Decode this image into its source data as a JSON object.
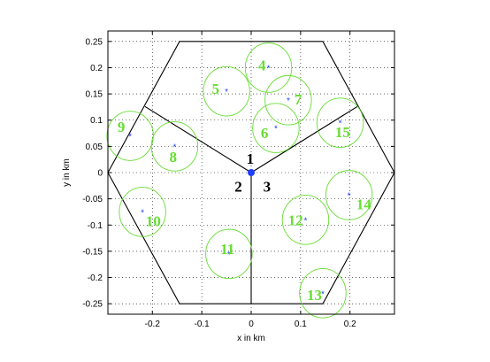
{
  "chart_data": {
    "type": "scatter",
    "title": "",
    "xlabel": "x in km",
    "ylabel": "y in km",
    "xlim": [
      -0.29,
      0.29
    ],
    "ylim": [
      -0.27,
      0.27
    ],
    "grid": "dotted",
    "x_ticks": [
      {
        "value": -0.2,
        "label": "-0.2"
      },
      {
        "value": -0.1,
        "label": "-0.1"
      },
      {
        "value": 0,
        "label": "0"
      },
      {
        "value": 0.1,
        "label": "0.1"
      },
      {
        "value": 0.2,
        "label": "0.2"
      }
    ],
    "y_ticks": [
      {
        "value": 0.25,
        "label": "0.25"
      },
      {
        "value": 0.2,
        "label": "0.2"
      },
      {
        "value": 0.15,
        "label": "0.15"
      },
      {
        "value": 0.1,
        "label": "0.1"
      },
      {
        "value": 0.05,
        "label": "0.05"
      },
      {
        "value": 0,
        "label": "0"
      },
      {
        "value": -0.05,
        "label": "-0.05"
      },
      {
        "value": -0.1,
        "label": "-0.1"
      },
      {
        "value": -0.15,
        "label": "-0.15"
      },
      {
        "value": -0.2,
        "label": "-0.2"
      },
      {
        "value": -0.25,
        "label": "-0.25"
      }
    ],
    "cell_boundary": {
      "vertices": [
        [
          0.29,
          0
        ],
        [
          0.145,
          0.25
        ],
        [
          -0.145,
          0.25
        ],
        [
          -0.29,
          0
        ],
        [
          -0.145,
          -0.25
        ],
        [
          0.145,
          -0.25
        ]
      ],
      "color": "#000000"
    },
    "sector_lines": {
      "center": [
        0,
        0
      ],
      "endpoints": [
        [
          -0.215,
          0.126
        ],
        [
          0.215,
          0.126
        ],
        [
          0,
          -0.25
        ]
      ],
      "color": "#000000"
    },
    "base_station": {
      "x": 0,
      "y": 0,
      "color": "#1f3fff"
    },
    "sector_labels": [
      {
        "label": "1",
        "x": -0.002,
        "y": 0.027
      },
      {
        "label": "2",
        "x": -0.026,
        "y": -0.026
      },
      {
        "label": "3",
        "x": 0.032,
        "y": -0.026
      }
    ],
    "users": {
      "marker_color": "#1f3fff",
      "circle_color": "#66dd33",
      "label_color": "#66dd33",
      "radius": 0.047,
      "marker_symbol": "*",
      "points": [
        {
          "id": "4",
          "x": 0.035,
          "y": 0.2,
          "label_x": 0.022,
          "label_y": 0.205
        },
        {
          "id": "5",
          "x": -0.05,
          "y": 0.155,
          "label_x": -0.072,
          "label_y": 0.16
        },
        {
          "id": "6",
          "x": 0.05,
          "y": 0.085,
          "label_x": 0.027,
          "label_y": 0.076
        },
        {
          "id": "7",
          "x": 0.075,
          "y": 0.138,
          "label_x": 0.095,
          "label_y": 0.14
        },
        {
          "id": "8",
          "x": -0.155,
          "y": 0.05,
          "label_x": -0.158,
          "label_y": 0.03
        },
        {
          "id": "9",
          "x": -0.245,
          "y": 0.07,
          "label_x": -0.263,
          "label_y": 0.088
        },
        {
          "id": "10",
          "x": -0.22,
          "y": -0.075,
          "label_x": -0.198,
          "label_y": -0.092
        },
        {
          "id": "11",
          "x": -0.045,
          "y": -0.155,
          "label_x": -0.048,
          "label_y": -0.145
        },
        {
          "id": "12",
          "x": 0.11,
          "y": -0.09,
          "label_x": 0.09,
          "label_y": -0.09
        },
        {
          "id": "13",
          "x": 0.145,
          "y": -0.23,
          "label_x": 0.128,
          "label_y": -0.233
        },
        {
          "id": "14",
          "x": 0.198,
          "y": -0.043,
          "label_x": 0.228,
          "label_y": -0.06
        },
        {
          "id": "15",
          "x": 0.18,
          "y": 0.095,
          "label_x": 0.185,
          "label_y": 0.078
        }
      ]
    }
  }
}
